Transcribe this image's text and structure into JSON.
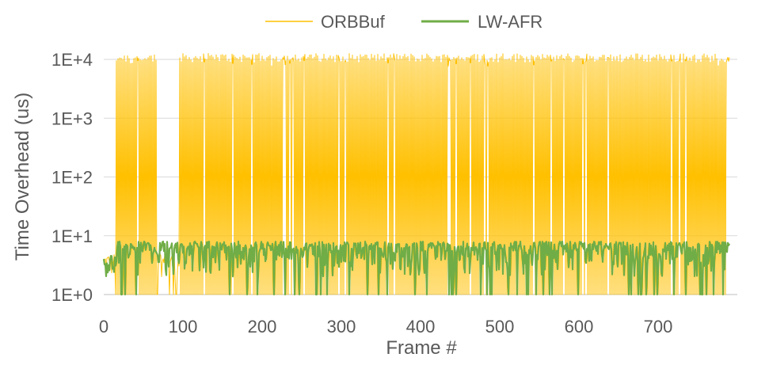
{
  "chart_data": {
    "type": "line",
    "title": "",
    "xlabel": "Frame #",
    "ylabel": "Time Overhead (us)",
    "yscale": "log",
    "xlim": [
      0,
      800
    ],
    "ylim": [
      1,
      10000
    ],
    "x_ticks": [
      0,
      100,
      200,
      300,
      400,
      500,
      600,
      700
    ],
    "x_tick_labels": [
      "0",
      "100",
      "200",
      "300",
      "400",
      "500",
      "600",
      "700"
    ],
    "y_ticks": [
      1,
      10,
      100,
      1000,
      10000
    ],
    "y_tick_labels": [
      "1E+0",
      "1E+1",
      "1E+2",
      "1E+3",
      "1E+4"
    ],
    "grid": {
      "horizontal": true,
      "vertical": false
    },
    "legend_position": "top-center",
    "colors": {
      "ORBBuf": "#FFC000",
      "LW-AFR": "#70AD47",
      "grid": "#D9D9D9",
      "text": "#595959"
    },
    "series": [
      {
        "name": "ORBBuf",
        "description": "Alternates rapidly between ~1E+4 and ~1E+0 for most frames; about 1-5 between frames 68 and 95",
        "high_value": 11000,
        "low_value": 1,
        "quiet_segments": [
          [
            0,
            15
          ],
          [
            68,
            96
          ]
        ],
        "quiet_values": [
          2,
          5
        ]
      },
      {
        "name": "LW-AFR",
        "description": "Fluctuates mostly between ~2 and ~8 across all frames",
        "min_value": 1,
        "max_value": 8,
        "typical_values": [
          2,
          5,
          7
        ]
      }
    ],
    "n_frames": 790
  }
}
